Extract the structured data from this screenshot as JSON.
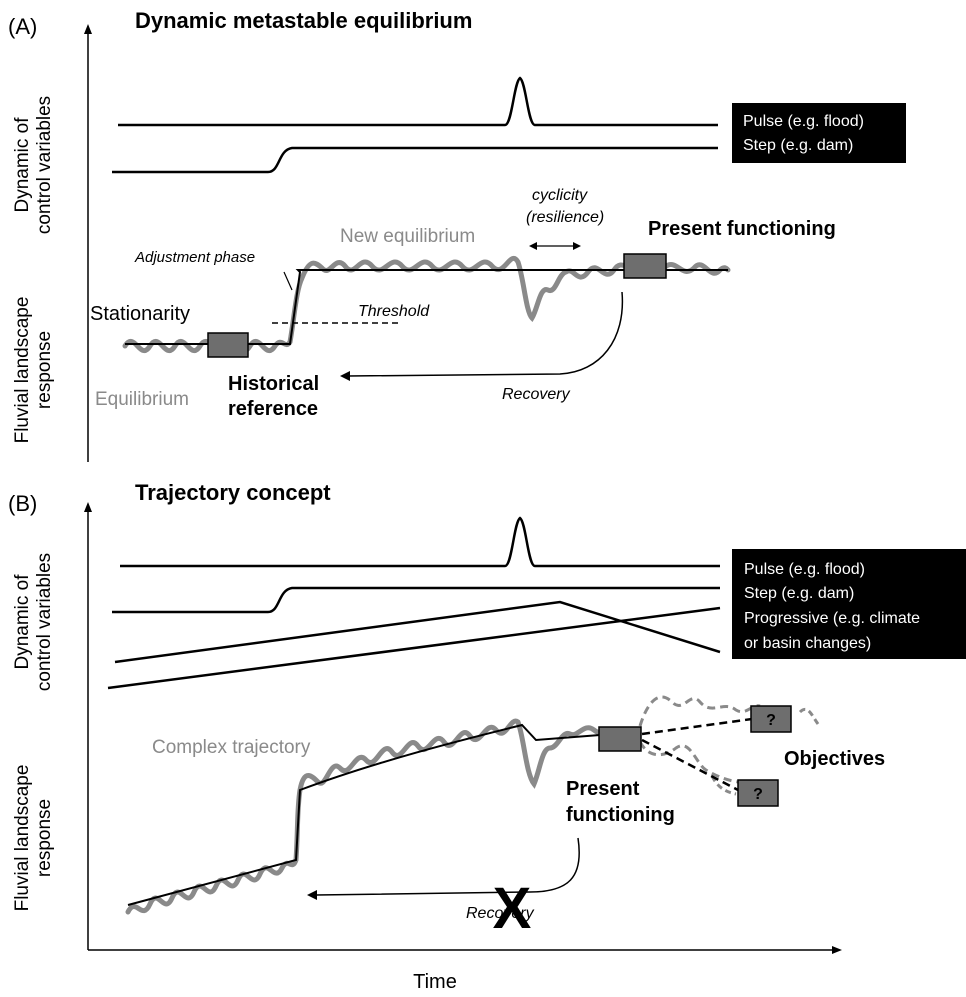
{
  "panel_a": {
    "label": "(A)",
    "title": "Dynamic metastable equilibrium",
    "y_label_control": [
      "Dynamic of",
      "control variables"
    ],
    "y_label_response": [
      "Fluvial landscape",
      "response"
    ],
    "legend": [
      "Pulse (e.g. flood)",
      "Step (e.g. dam)"
    ],
    "labels": {
      "cyclicity": "cyclicity",
      "resilience": "(resilience)",
      "new_equilibrium": "New equilibrium",
      "present_functioning": "Present functioning",
      "adjustment_phase": "Adjustment phase",
      "stationarity": "Stationarity",
      "threshold": "Threshold",
      "historical_reference": [
        "Historical",
        "reference"
      ],
      "equilibrium": "Equilibrium",
      "recovery": "Recovery"
    }
  },
  "panel_b": {
    "label": "(B)",
    "title": "Trajectory concept",
    "y_label_control": [
      "Dynamic of",
      "control variables"
    ],
    "y_label_response": [
      "Fluvial landscape",
      "response"
    ],
    "legend": [
      "Pulse (e.g. flood)",
      "Step (e.g. dam)",
      "Progressive (e.g. climate",
      "or basin changes)"
    ],
    "labels": {
      "complex_trajectory": "Complex trajectory",
      "objectives": "Objectives",
      "present_functioning": [
        "Present",
        "functioning"
      ],
      "recovery": "Recovery",
      "question_mark": "?",
      "cross": "X"
    }
  },
  "x_axis_label": "Time",
  "colors": {
    "line": "#000000",
    "response": "#8a8a8a",
    "box": "#6e6e6e"
  }
}
